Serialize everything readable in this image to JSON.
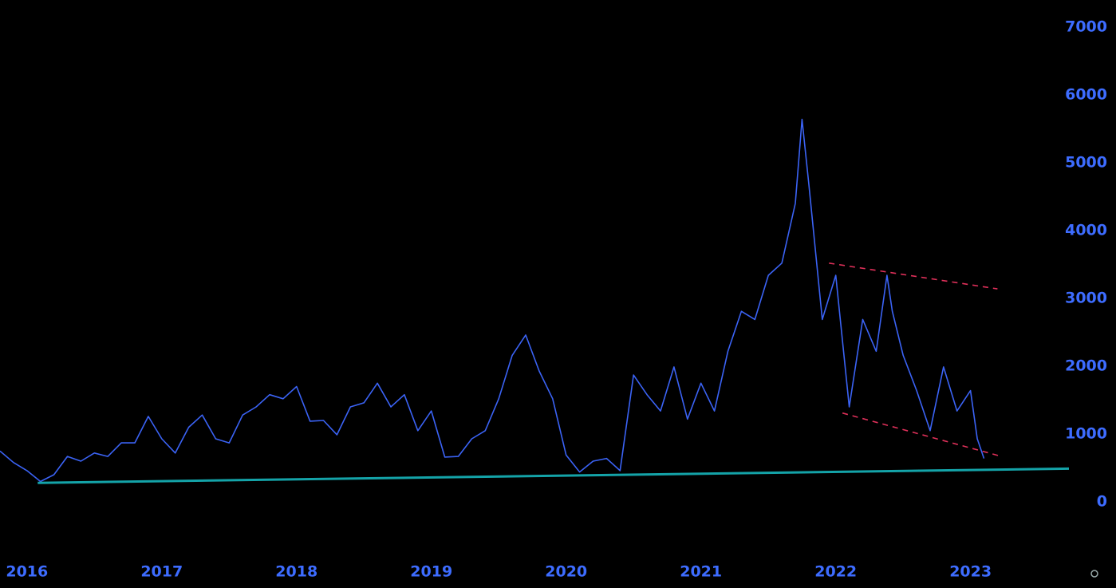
{
  "chart_data": {
    "type": "line",
    "x": [
      2015.8,
      2015.9,
      2016.0,
      2016.1,
      2016.2,
      2016.3,
      2016.4,
      2016.5,
      2016.6,
      2016.7,
      2016.8,
      2016.9,
      2017.0,
      2017.1,
      2017.2,
      2017.3,
      2017.4,
      2017.5,
      2017.6,
      2017.7,
      2017.8,
      2017.9,
      2018.0,
      2018.1,
      2018.2,
      2018.3,
      2018.4,
      2018.5,
      2018.6,
      2018.7,
      2018.8,
      2018.9,
      2019.0,
      2019.1,
      2019.2,
      2019.3,
      2019.4,
      2019.5,
      2019.6,
      2019.7,
      2019.8,
      2019.9,
      2020.0,
      2020.1,
      2020.2,
      2020.3,
      2020.4,
      2020.5,
      2020.6,
      2020.7,
      2020.8,
      2020.9,
      2021.0,
      2021.1,
      2021.2,
      2021.3,
      2021.4,
      2021.5,
      2021.6,
      2021.7,
      2021.75,
      2021.8,
      2021.9,
      2022.0,
      2022.1,
      2022.2,
      2022.3,
      2022.38,
      2022.42,
      2022.5,
      2022.6,
      2022.7,
      2022.8,
      2022.9,
      2023.0,
      2023.05,
      2023.1
    ],
    "series": [
      {
        "color": "#3b63f5",
        "values": [
          750,
          580,
          460,
          300,
          400,
          670,
          600,
          720,
          670,
          870,
          870,
          1260,
          930,
          720,
          1100,
          1280,
          930,
          870,
          1280,
          1400,
          1580,
          1520,
          1700,
          1190,
          1200,
          990,
          1400,
          1460,
          1750,
          1400,
          1580,
          1050,
          1340,
          660,
          670,
          930,
          1050,
          1520,
          2160,
          2460,
          1930,
          1520,
          690,
          440,
          600,
          640,
          460,
          1870,
          1580,
          1340,
          1990,
          1220,
          1750,
          1340,
          2220,
          2810,
          2690,
          3340,
          3520,
          4400,
          5640,
          4690,
          2690,
          3340,
          1400,
          2690,
          2220,
          3340,
          2810,
          2160,
          1640,
          1050,
          1990,
          1340,
          1640,
          930,
          640
        ]
      }
    ],
    "trend_lines": [
      {
        "color": "#14a3a8",
        "dashed": false,
        "x": [
          2016.08,
          2023.73
        ],
        "values": [
          280,
          490
        ]
      },
      {
        "color": "#e0305a",
        "dashed": true,
        "x": [
          2021.95,
          2023.2
        ],
        "values": [
          3520,
          3140
        ]
      },
      {
        "color": "#e0305a",
        "dashed": true,
        "x": [
          2022.05,
          2023.23
        ],
        "values": [
          1310,
          670
        ]
      }
    ],
    "xlim": [
      2015.8,
      2023.73
    ],
    "xticks": [
      2016,
      2017,
      2018,
      2019,
      2020,
      2021,
      2022,
      2023
    ],
    "ylim": [
      -835,
      7400
    ],
    "yticks": [
      0,
      1000,
      2000,
      3000,
      4000,
      5000,
      6000,
      7000
    ]
  }
}
